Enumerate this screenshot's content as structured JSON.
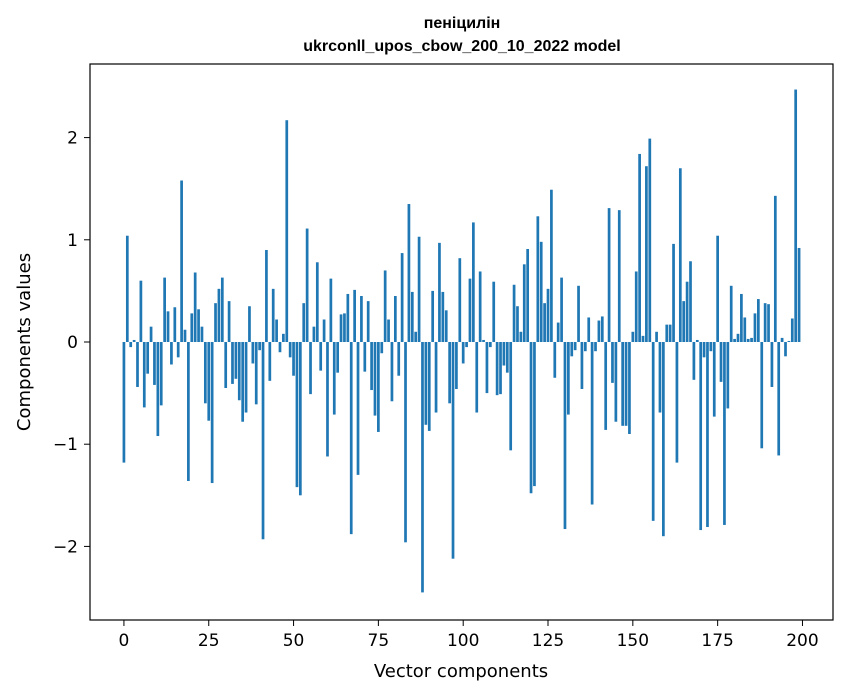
{
  "chart_data": {
    "type": "bar",
    "title": [
      "пеніцилін",
      "ukrconll_upos_cbow_200_10_2022 model"
    ],
    "xlabel": "Vector components",
    "ylabel": "Components values",
    "xlim": [
      -10,
      209
    ],
    "ylim": [
      -2.72,
      2.72
    ],
    "xticks": [
      0,
      25,
      50,
      75,
      100,
      125,
      150,
      175,
      200
    ],
    "xtick_labels": [
      "0",
      "25",
      "50",
      "75",
      "100",
      "125",
      "150",
      "175",
      "200"
    ],
    "yticks": [
      -2,
      -1,
      0,
      1,
      2
    ],
    "ytick_labels": [
      "−2",
      "−1",
      "0",
      "1",
      "2"
    ],
    "grid": false,
    "bar_color": "#1f77b4",
    "x": [
      0,
      1,
      2,
      3,
      4,
      5,
      6,
      7,
      8,
      9,
      10,
      11,
      12,
      13,
      14,
      15,
      16,
      17,
      18,
      19,
      20,
      21,
      22,
      23,
      24,
      25,
      26,
      27,
      28,
      29,
      30,
      31,
      32,
      33,
      34,
      35,
      36,
      37,
      38,
      39,
      40,
      41,
      42,
      43,
      44,
      45,
      46,
      47,
      48,
      49,
      50,
      51,
      52,
      53,
      54,
      55,
      56,
      57,
      58,
      59,
      60,
      61,
      62,
      63,
      64,
      65,
      66,
      67,
      68,
      69,
      70,
      71,
      72,
      73,
      74,
      75,
      76,
      77,
      78,
      79,
      80,
      81,
      82,
      83,
      84,
      85,
      86,
      87,
      88,
      89,
      90,
      91,
      92,
      93,
      94,
      95,
      96,
      97,
      98,
      99,
      100,
      101,
      102,
      103,
      104,
      105,
      106,
      107,
      108,
      109,
      110,
      111,
      112,
      113,
      114,
      115,
      116,
      117,
      118,
      119,
      120,
      121,
      122,
      123,
      124,
      125,
      126,
      127,
      128,
      129,
      130,
      131,
      132,
      133,
      134,
      135,
      136,
      137,
      138,
      139,
      140,
      141,
      142,
      143,
      144,
      145,
      146,
      147,
      148,
      149,
      150,
      151,
      152,
      153,
      154,
      155,
      156,
      157,
      158,
      159,
      160,
      161,
      162,
      163,
      164,
      165,
      166,
      167,
      168,
      169,
      170,
      171,
      172,
      173,
      174,
      175,
      176,
      177,
      178,
      179,
      180,
      181,
      182,
      183,
      184,
      185,
      186,
      187,
      188,
      189,
      190,
      191,
      192,
      193,
      194,
      195,
      196,
      197,
      198,
      199
    ],
    "values": [
      -1.18,
      1.04,
      -0.05,
      0.02,
      -0.44,
      0.6,
      -0.64,
      -0.31,
      0.15,
      -0.42,
      -0.92,
      -0.62,
      0.63,
      0.3,
      -0.22,
      0.34,
      -0.15,
      1.58,
      0.12,
      -1.36,
      0.28,
      0.68,
      0.32,
      0.15,
      -0.6,
      -0.77,
      -1.38,
      0.38,
      0.52,
      0.63,
      -0.45,
      0.4,
      -0.41,
      -0.36,
      -0.57,
      -0.78,
      -0.69,
      0.35,
      -0.21,
      -0.61,
      -0.08,
      -1.93,
      0.9,
      -0.38,
      0.52,
      0.22,
      -0.1,
      0.08,
      2.17,
      -0.15,
      -0.33,
      -1.42,
      -1.5,
      0.38,
      1.11,
      -0.51,
      0.15,
      0.78,
      -0.28,
      0.22,
      -1.12,
      0.62,
      -0.71,
      -0.3,
      0.27,
      0.28,
      0.47,
      -1.88,
      0.51,
      -1.3,
      0.45,
      -0.29,
      0.4,
      -0.47,
      -0.72,
      -0.88,
      -0.11,
      0.7,
      0.22,
      -0.58,
      0.45,
      -0.33,
      0.87,
      -1.96,
      1.35,
      0.49,
      0.1,
      1.03,
      -2.45,
      -0.81,
      -0.87,
      0.5,
      -0.69,
      0.97,
      0.49,
      0.31,
      -0.6,
      -2.12,
      -0.46,
      0.82,
      -0.21,
      -0.05,
      0.62,
      1.17,
      -0.69,
      0.69,
      0.02,
      -0.5,
      -0.05,
      0.59,
      -0.52,
      -0.51,
      -0.23,
      -0.3,
      -1.06,
      0.56,
      0.35,
      0.1,
      0.76,
      0.91,
      -1.48,
      -1.41,
      1.23,
      0.98,
      0.38,
      0.52,
      1.49,
      -0.35,
      0.19,
      0.63,
      -1.83,
      -0.71,
      -0.14,
      -0.08,
      0.55,
      -0.46,
      -0.09,
      0.24,
      -1.59,
      -0.09,
      0.21,
      0.25,
      -0.86,
      1.31,
      -0.4,
      -0.78,
      1.29,
      -0.82,
      -0.82,
      -0.9,
      0.1,
      0.69,
      1.84,
      0.06,
      1.72,
      1.99,
      -1.75,
      0.1,
      -0.69,
      -1.9,
      0.17,
      0.17,
      0.96,
      -1.18,
      1.7,
      0.4,
      0.59,
      0.79,
      -0.37,
      0.02,
      -1.84,
      -0.15,
      -1.81,
      -0.09,
      -0.73,
      1.04,
      -0.39,
      -1.79,
      -0.65,
      0.55,
      0.03,
      0.08,
      0.47,
      0.24,
      0.03,
      0.04,
      0.28,
      0.42,
      -1.04,
      0.38,
      0.37,
      -0.44,
      1.43,
      -1.11,
      0.04,
      -0.14,
      0.01,
      0.23,
      2.47,
      0.92
    ]
  }
}
